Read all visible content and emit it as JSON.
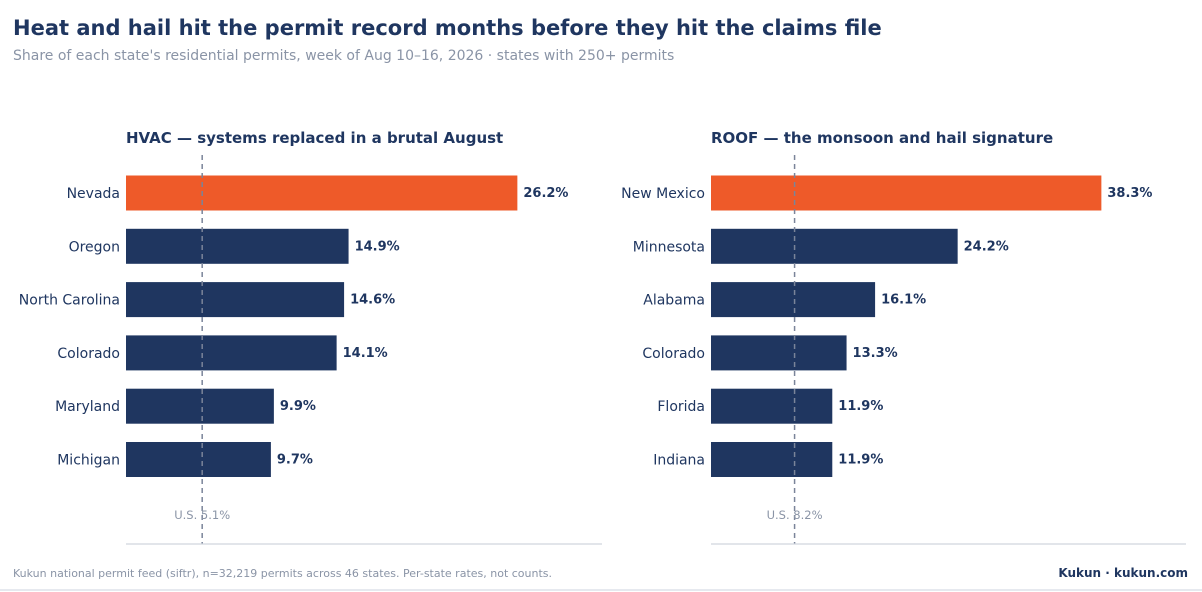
{
  "header": {
    "title": "Heat and hail hit the permit record months before they hit the claims file",
    "subtitle": "Share of each state's residential permits, week of Aug 10–16, 2026  ·  states with 250+ permits"
  },
  "colors": {
    "highlight": "#ee5a29",
    "bar": "#1f3660",
    "reference_line": "#7a8499",
    "axis": "#d0d5de",
    "label": "#1f3660",
    "muted": "#8a94a6"
  },
  "chart_data": [
    {
      "type": "bar",
      "orientation": "horizontal",
      "title": "HVAC — systems replaced in a brutal August",
      "categories": [
        "Nevada",
        "Oregon",
        "North Carolina",
        "Colorado",
        "Maryland",
        "Michigan"
      ],
      "values": [
        26.2,
        14.9,
        14.6,
        14.1,
        9.9,
        9.7
      ],
      "value_labels": [
        "26.2%",
        "14.9%",
        "14.6%",
        "14.1%",
        "9.9%",
        "9.7%"
      ],
      "highlight_index": 0,
      "reference": {
        "value": 5.1,
        "label": "U.S. 5.1%"
      },
      "xlim": [
        0,
        32
      ],
      "xlabel": "",
      "ylabel": "",
      "grid": false
    },
    {
      "type": "bar",
      "orientation": "horizontal",
      "title": "ROOF — the monsoon and hail signature",
      "categories": [
        "New Mexico",
        "Minnesota",
        "Alabama",
        "Colorado",
        "Florida",
        "Indiana"
      ],
      "values": [
        38.3,
        24.2,
        16.1,
        13.3,
        11.9,
        11.9
      ],
      "value_labels": [
        "38.3%",
        "24.2%",
        "16.1%",
        "13.3%",
        "11.9%",
        "11.9%"
      ],
      "highlight_index": 0,
      "reference": {
        "value": 8.2,
        "label": "U.S. 8.2%"
      },
      "xlim": [
        0,
        46.8
      ],
      "xlabel": "",
      "ylabel": "",
      "grid": false
    }
  ],
  "footer": {
    "source": "Kukun national permit feed (siftr), n=32,219 permits across 46 states. Per-state rates, not counts.",
    "brand": "Kukun  ·  kukun.com"
  }
}
